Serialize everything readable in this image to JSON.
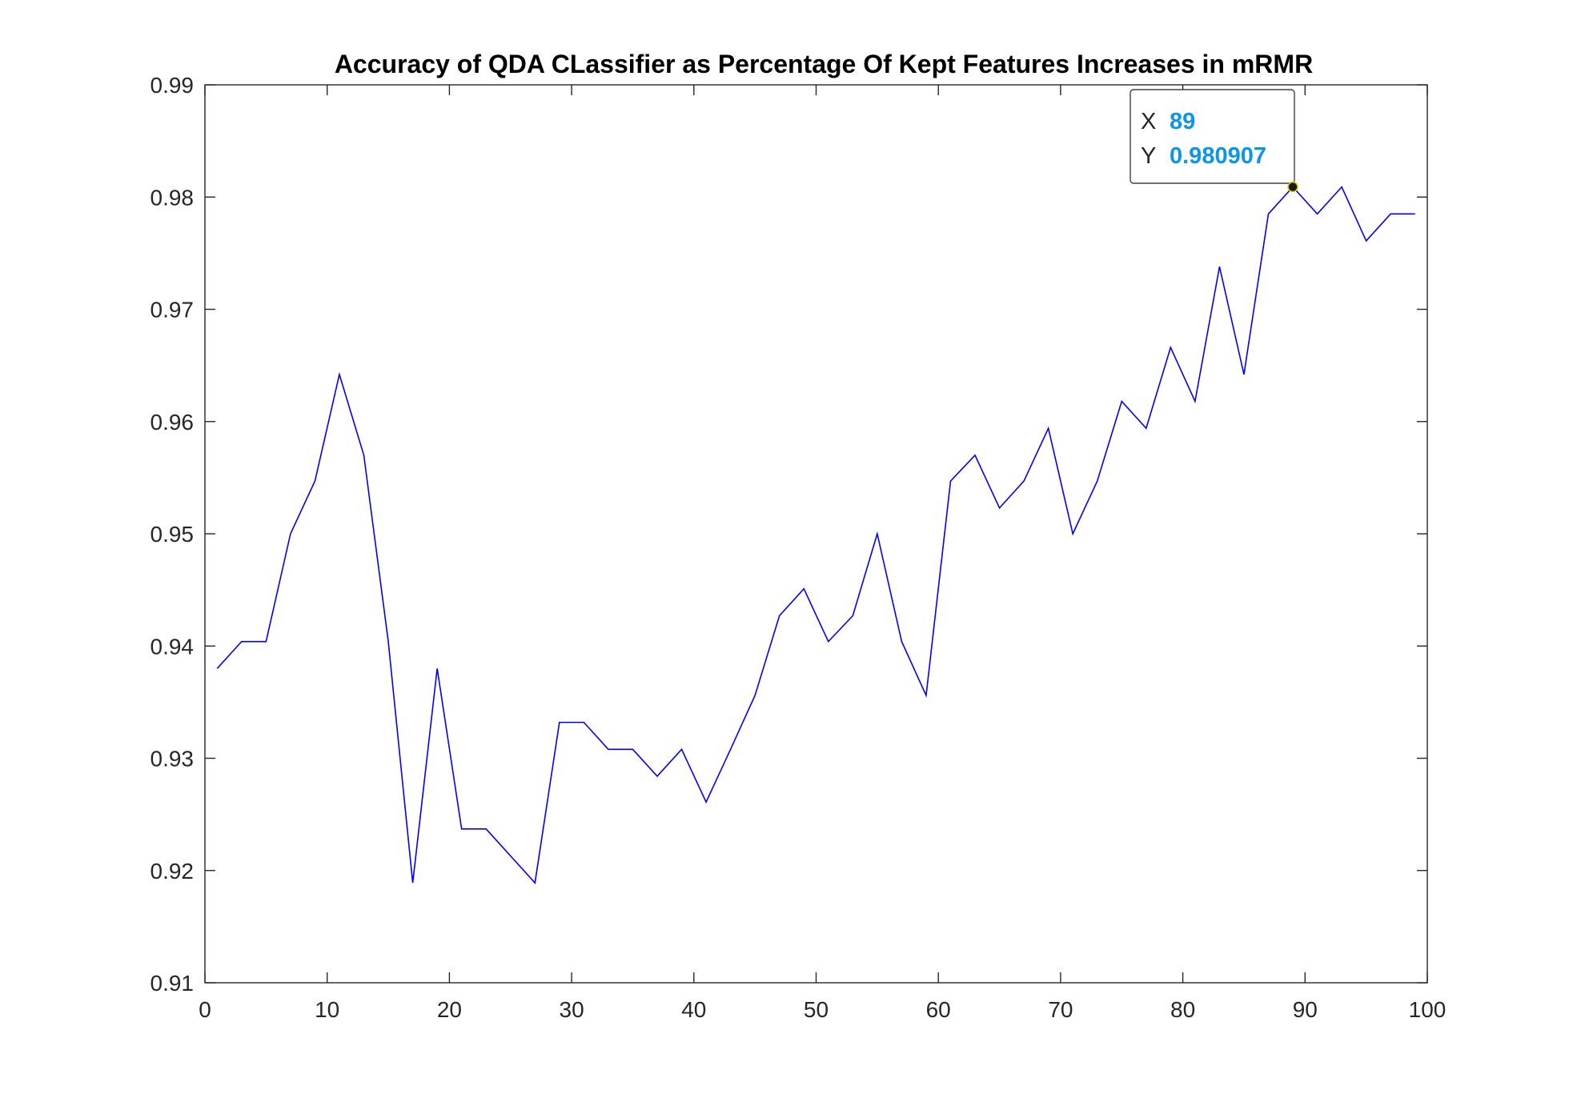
{
  "chart_data": {
    "type": "line",
    "title": "Accuracy of QDA CLassifier as Percentage Of Kept Features Increases in mRMR",
    "xlabel": "",
    "ylabel": "",
    "xlim": [
      0,
      100
    ],
    "ylim": [
      0.91,
      0.99
    ],
    "xticks": [
      0,
      10,
      20,
      30,
      40,
      50,
      60,
      70,
      80,
      90,
      100
    ],
    "yticks": [
      0.91,
      0.92,
      0.93,
      0.94,
      0.95,
      0.96,
      0.97,
      0.98,
      0.99
    ],
    "xtick_labels": [
      "0",
      "10",
      "20",
      "30",
      "40",
      "50",
      "60",
      "70",
      "80",
      "90",
      "100"
    ],
    "ytick_labels": [
      "0.91",
      "0.92",
      "0.93",
      "0.94",
      "0.95",
      "0.96",
      "0.97",
      "0.98",
      "0.99"
    ],
    "grid": false,
    "line_color": "#0000ff",
    "series": [
      {
        "x": [
          1,
          3,
          5,
          7,
          9,
          11,
          13,
          15,
          17,
          19,
          21,
          23,
          25,
          27,
          29,
          31,
          33,
          35,
          37,
          39,
          41,
          43,
          45,
          47,
          49,
          51,
          53,
          55,
          57,
          59,
          61,
          63,
          65,
          67,
          69,
          71,
          73,
          75,
          77,
          79,
          81,
          83,
          85,
          87,
          89,
          91,
          93,
          95,
          97,
          99
        ],
        "y": [
          0.938,
          0.9404,
          0.9404,
          0.95,
          0.9547,
          0.9642,
          0.957,
          0.9404,
          0.9189,
          0.938,
          0.9237,
          0.9237,
          0.9213,
          0.9189,
          0.9332,
          0.9332,
          0.9308,
          0.9308,
          0.9284,
          0.9308,
          0.9261,
          0.9308,
          0.9356,
          0.9427,
          0.9451,
          0.9404,
          0.9427,
          0.95,
          0.9404,
          0.9356,
          0.9547,
          0.957,
          0.9523,
          0.9547,
          0.9594,
          0.95,
          0.9547,
          0.9618,
          0.9594,
          0.9666,
          0.9618,
          0.9738,
          0.9642,
          0.9785,
          0.980907,
          0.9785,
          0.9809,
          0.9761,
          0.9785,
          0.9785
        ]
      }
    ],
    "datatip": {
      "x_label": "X",
      "y_label": "Y",
      "x_value": "89",
      "y_value": "0.980907",
      "x": 89,
      "y": 0.980907,
      "value_color": "#0d95e8"
    }
  }
}
